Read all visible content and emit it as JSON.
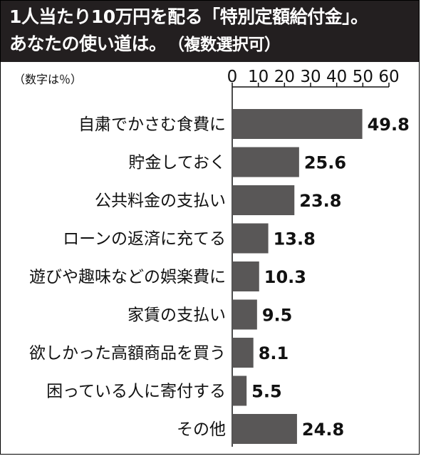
{
  "header": {
    "title_line1": "1人当たり10万円を配る「特別定額給付金」。",
    "title_line2": "あなたの使い道は。",
    "title_note": "（複数選択可）"
  },
  "chart_data": {
    "type": "bar",
    "orientation": "horizontal",
    "unit_note": "（数字は％）",
    "categories": [
      "自粛でかさむ食費に",
      "貯金しておく",
      "公共料金の支払い",
      "ローンの返済に充てる",
      "遊びや趣味などの娯楽費に",
      "家賃の支払い",
      "欲しかった高額商品を買う",
      "困っている人に寄付する",
      "その他"
    ],
    "values": [
      49.8,
      25.6,
      23.8,
      13.8,
      10.3,
      9.5,
      8.1,
      5.5,
      24.8
    ],
    "value_labels": [
      "49.8",
      "25.6",
      "23.8",
      "13.8",
      "10.3",
      "9.5",
      "8.1",
      "5.5",
      "24.8"
    ],
    "xlim": [
      0,
      60
    ],
    "ticks": [
      0,
      10,
      20,
      30,
      40,
      50,
      60
    ],
    "tick_labels": [
      "0",
      "10",
      "20",
      "30",
      "40",
      "50",
      "60"
    ],
    "grid": false,
    "bar_color": "#595757"
  }
}
